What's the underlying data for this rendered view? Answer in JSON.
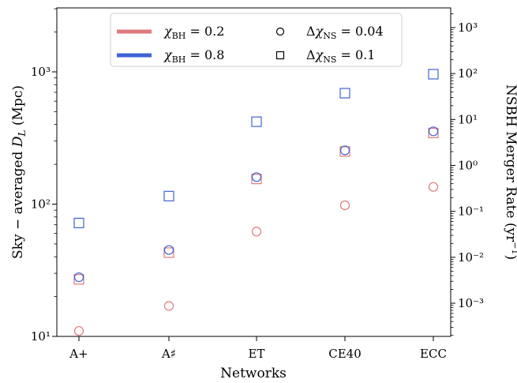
{
  "chart_data": {
    "type": "scatter",
    "xlabel": "Networks",
    "ylabel_left": "Sky − averaged D_L (Mpc)",
    "ylabel_right": "NSBH Merger Rate (yr⁻¹)",
    "categories": [
      "A+",
      "A♯",
      "ET",
      "CE40",
      "ECC"
    ],
    "y_scale": "log",
    "ylim_left": [
      10,
      3000
    ],
    "left_ticks": [
      {
        "value": 10,
        "label": "10¹"
      },
      {
        "value": 100,
        "label": "10²"
      },
      {
        "value": 1000,
        "label": "10³"
      }
    ],
    "right_ticks": [
      {
        "value": 0.001,
        "label": "10⁻³"
      },
      {
        "value": 0.01,
        "label": "10⁻²"
      },
      {
        "value": 0.1,
        "label": "10⁻¹"
      },
      {
        "value": 1,
        "label": "10⁰"
      },
      {
        "value": 10,
        "label": "10¹"
      },
      {
        "value": 100,
        "label": "10²"
      },
      {
        "value": 1000,
        "label": "10³"
      }
    ],
    "legend": {
      "placement": "top-center",
      "color_entries": [
        {
          "label": "χ_BH = 0.2",
          "color": "#e07a7a"
        },
        {
          "label": "χ_BH = 0.8",
          "color": "#3f63d6"
        }
      ],
      "marker_entries": [
        {
          "label": "Δχ_NS = 0.04",
          "marker": "circle"
        },
        {
          "label": "Δχ_NS = 0.1",
          "marker": "square"
        }
      ]
    },
    "series": [
      {
        "chi_bh": 0.2,
        "delta_chi_ns": 0.04,
        "color": "#e07a7a",
        "marker": "circle",
        "values": [
          11,
          17,
          62,
          98,
          135
        ]
      },
      {
        "chi_bh": 0.2,
        "delta_chi_ns": 0.1,
        "color": "#e07a7a",
        "marker": "square",
        "values": [
          27,
          43,
          155,
          250,
          345
        ]
      },
      {
        "chi_bh": 0.8,
        "delta_chi_ns": 0.04,
        "color": "#3f63d6",
        "marker": "circle",
        "values": [
          28,
          45,
          160,
          255,
          355
        ]
      },
      {
        "chi_bh": 0.8,
        "delta_chi_ns": 0.1,
        "color": "#3f63d6",
        "marker": "square",
        "values": [
          72,
          115,
          420,
          690,
          960
        ]
      }
    ]
  }
}
